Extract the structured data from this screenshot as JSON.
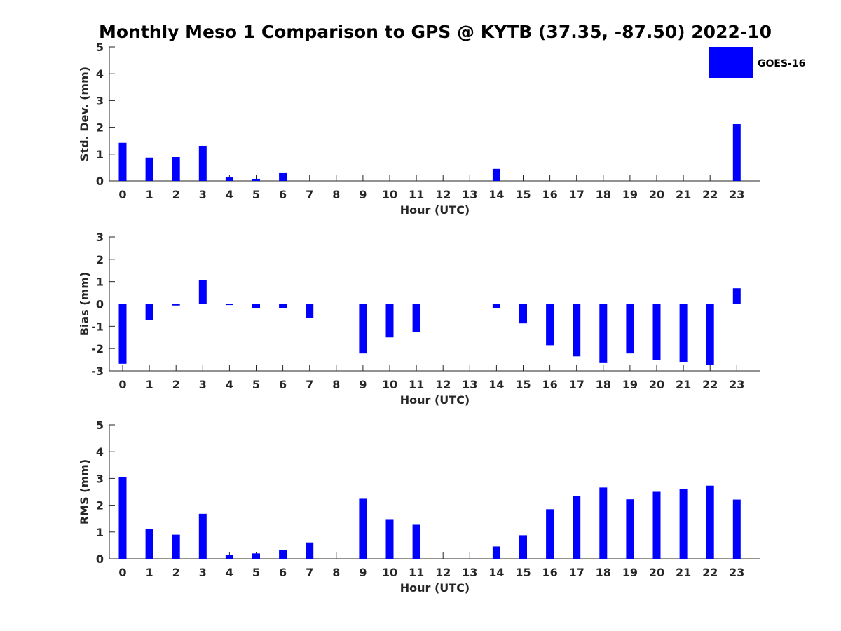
{
  "title": "Monthly Meso 1 Comparison to GPS @ KYTB (37.35, -87.50) 2022-10",
  "legend": {
    "label": "GOES-16",
    "color": "#0000ff"
  },
  "colors": {
    "bar": "#0000ff",
    "axis": "#262626"
  },
  "chart_data": [
    {
      "type": "bar",
      "name": "std-dev",
      "ylabel": "Std. Dev. (mm)",
      "xlabel": "Hour (UTC)",
      "ylim": [
        0,
        5
      ],
      "yticks": [
        0,
        1,
        2,
        3,
        4,
        5
      ],
      "categories": [
        0,
        1,
        2,
        3,
        4,
        5,
        6,
        7,
        8,
        9,
        10,
        11,
        12,
        13,
        14,
        15,
        16,
        17,
        18,
        19,
        20,
        21,
        22,
        23
      ],
      "series": [
        {
          "name": "GOES-16",
          "values": [
            1.42,
            0.87,
            0.89,
            1.31,
            0.13,
            0.08,
            0.29,
            0,
            0,
            0,
            0,
            0,
            0,
            0,
            0.45,
            0,
            0,
            0,
            0,
            0,
            0,
            0,
            0,
            2.12
          ]
        }
      ]
    },
    {
      "type": "bar",
      "name": "bias",
      "ylabel": "Bias (mm)",
      "xlabel": "Hour (UTC)",
      "ylim": [
        -3,
        3
      ],
      "yticks": [
        -3,
        -2,
        -1,
        0,
        1,
        2,
        3
      ],
      "categories": [
        0,
        1,
        2,
        3,
        4,
        5,
        6,
        7,
        8,
        9,
        10,
        11,
        12,
        13,
        14,
        15,
        16,
        17,
        18,
        19,
        20,
        21,
        22,
        23
      ],
      "series": [
        {
          "name": "GOES-16",
          "values": [
            -2.68,
            -0.72,
            -0.07,
            1.07,
            -0.05,
            -0.18,
            -0.18,
            -0.62,
            0,
            -2.22,
            -1.5,
            -1.25,
            0,
            0,
            -0.18,
            -0.87,
            -1.85,
            -2.35,
            -2.65,
            -2.22,
            -2.5,
            -2.6,
            -2.72,
            0.7
          ]
        }
      ]
    },
    {
      "type": "bar",
      "name": "rms",
      "ylabel": "RMS (mm)",
      "xlabel": "Hour (UTC)",
      "ylim": [
        0,
        5
      ],
      "yticks": [
        0,
        1,
        2,
        3,
        4,
        5
      ],
      "categories": [
        0,
        1,
        2,
        3,
        4,
        5,
        6,
        7,
        8,
        9,
        10,
        11,
        12,
        13,
        14,
        15,
        16,
        17,
        18,
        19,
        20,
        21,
        22,
        23
      ],
      "series": [
        {
          "name": "GOES-16",
          "values": [
            3.05,
            1.1,
            0.9,
            1.68,
            0.14,
            0.2,
            0.32,
            0.61,
            0,
            2.24,
            1.48,
            1.27,
            0,
            0,
            0.46,
            0.88,
            1.85,
            2.35,
            2.66,
            2.22,
            2.5,
            2.61,
            2.73,
            2.21
          ]
        }
      ]
    }
  ]
}
